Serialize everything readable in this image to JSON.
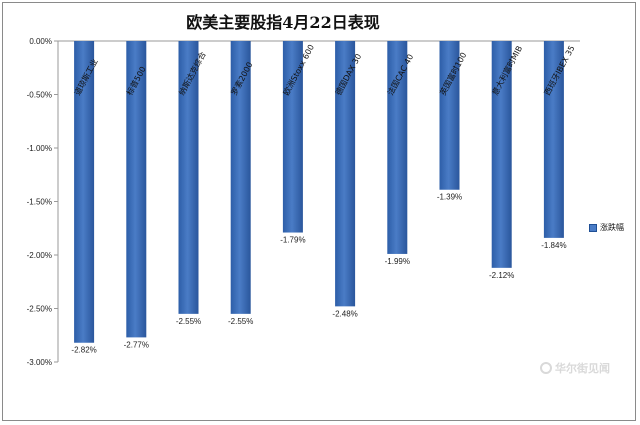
{
  "chart_data": {
    "type": "bar",
    "title": "欧美主要股指4月22日表现",
    "categories": [
      "道琼斯工业",
      "标普500",
      "纳斯达克综合",
      "罗素2000",
      "欧洲Stoxx 600",
      "德国DAX 30",
      "法国CAC 40",
      "英国富时100",
      "意大利富时MIB",
      "西班牙IBEX 35"
    ],
    "series": [
      {
        "name": "涨跌幅",
        "values": [
          -2.82,
          -2.77,
          -2.55,
          -2.55,
          -1.79,
          -2.48,
          -1.99,
          -1.39,
          -2.12,
          -1.84
        ],
        "labels": [
          "-2.82%",
          "-2.77%",
          "-2.55%",
          "-2.55%",
          "-1.79%",
          "-2.48%",
          "-1.99%",
          "-1.39%",
          "-2.12%",
          "-1.84%"
        ]
      }
    ],
    "yticks": [
      "0.00%",
      "-0.50%",
      "-1.00%",
      "-1.50%",
      "-2.00%",
      "-2.50%",
      "-3.00%"
    ],
    "ylim": [
      -3.0,
      0.0
    ],
    "grid": false,
    "legend_position": "right",
    "bar_color": "#4a7cc6"
  },
  "watermark": "华尔街见闻"
}
